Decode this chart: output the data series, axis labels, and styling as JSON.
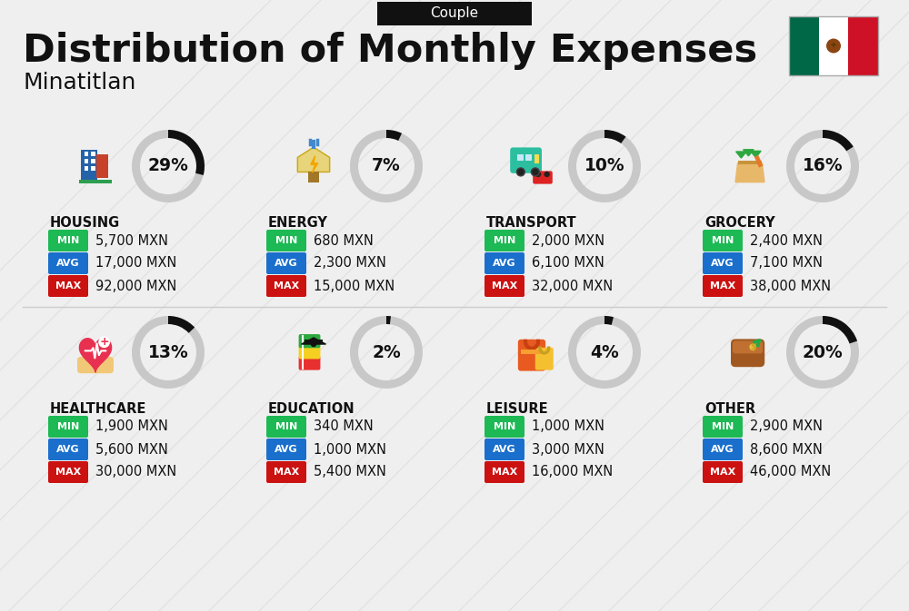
{
  "title": "Distribution of Monthly Expenses",
  "subtitle": "Minatitlan",
  "badge": "Couple",
  "bg_color": "#efefef",
  "categories": [
    {
      "name": "HOUSING",
      "pct": 29,
      "min": "5,700 MXN",
      "avg": "17,000 MXN",
      "max": "92,000 MXN",
      "row": 0,
      "col": 0
    },
    {
      "name": "ENERGY",
      "pct": 7,
      "min": "680 MXN",
      "avg": "2,300 MXN",
      "max": "15,000 MXN",
      "row": 0,
      "col": 1
    },
    {
      "name": "TRANSPORT",
      "pct": 10,
      "min": "2,000 MXN",
      "avg": "6,100 MXN",
      "max": "32,000 MXN",
      "row": 0,
      "col": 2
    },
    {
      "name": "GROCERY",
      "pct": 16,
      "min": "2,400 MXN",
      "avg": "7,100 MXN",
      "max": "38,000 MXN",
      "row": 0,
      "col": 3
    },
    {
      "name": "HEALTHCARE",
      "pct": 13,
      "min": "1,900 MXN",
      "avg": "5,600 MXN",
      "max": "30,000 MXN",
      "row": 1,
      "col": 0
    },
    {
      "name": "EDUCATION",
      "pct": 2,
      "min": "340 MXN",
      "avg": "1,000 MXN",
      "max": "5,400 MXN",
      "row": 1,
      "col": 1
    },
    {
      "name": "LEISURE",
      "pct": 4,
      "min": "1,000 MXN",
      "avg": "3,000 MXN",
      "max": "16,000 MXN",
      "row": 1,
      "col": 2
    },
    {
      "name": "OTHER",
      "pct": 20,
      "min": "2,900 MXN",
      "avg": "8,600 MXN",
      "max": "46,000 MXN",
      "row": 1,
      "col": 3
    }
  ],
  "color_min": "#1db954",
  "color_avg": "#1a6fcc",
  "color_max": "#cc1111",
  "color_dark": "#111111",
  "color_circle_bg": "#c8c8c8",
  "color_circle_fg": "#111111",
  "flag_green": "#006847",
  "flag_white": "#FFFFFF",
  "flag_red": "#CE1126",
  "label_min": "MIN",
  "label_avg": "AVG",
  "label_max": "MAX"
}
